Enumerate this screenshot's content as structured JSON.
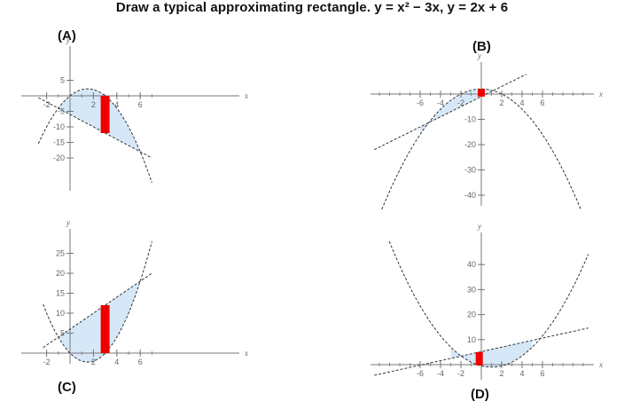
{
  "title": "Draw a typical approximating rectangle.  y = x² − 3x, y = 2x + 6",
  "style": {
    "fill": "#d6e8f8",
    "rect": "#ee0000",
    "axis": "#777777",
    "curve": "#333333"
  },
  "panels": [
    {
      "label": "(A)",
      "xname": "x",
      "yname": "y",
      "xticks": [
        -2,
        2,
        4,
        6
      ],
      "yticks": [
        5,
        -5,
        -10,
        -15,
        -20
      ]
    },
    {
      "label": "(B)",
      "xname": "x",
      "yname": "y",
      "xticks": [
        -6,
        -4,
        -2,
        2,
        4,
        6
      ],
      "yticks": [
        -10,
        -20,
        -30,
        -40
      ]
    },
    {
      "label": "(C)",
      "xname": "x",
      "yname": "y",
      "xticks": [
        -2,
        2,
        4,
        6
      ],
      "yticks": [
        25,
        20,
        15,
        10,
        5
      ]
    },
    {
      "label": "(D)",
      "xname": "x",
      "yname": "y",
      "xticks": [
        -6,
        -4,
        -2,
        2,
        4,
        6
      ],
      "yticks": [
        40,
        30,
        20,
        10
      ]
    }
  ]
}
